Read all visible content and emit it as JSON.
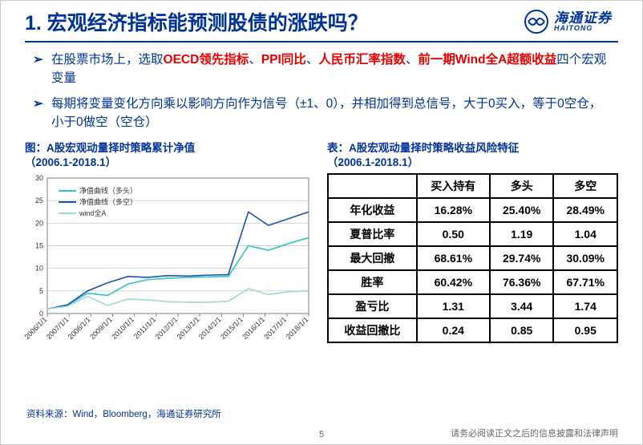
{
  "header": {
    "title": "1. 宏观经济指标能预测股债的涨跌吗？",
    "logo_cn": "海通证券",
    "logo_en": "HAITONG"
  },
  "bullets": [
    {
      "prefix": "在股票市场上，选取",
      "hl1": "OECD领先指标",
      "m1": "、",
      "hl2": "PPI同比",
      "m2": "、",
      "hl3": "人民币汇率指数",
      "m3": "、",
      "hl4": "前一期Wind全A超额收益",
      "suffix": "四个宏观变量"
    },
    {
      "text": "每期将变量变化方向乘以影响方向作为信号（±1、0），并相加得到总信号，大于0买入，等于0空仓，小于0做空（空仓）"
    }
  ],
  "chart": {
    "caption_l1": "图：A股宏观动量择时策略累计净值",
    "caption_l2": "（2006.1-2018.1）",
    "x_labels": [
      "2006/1/1",
      "2007/1/1",
      "2008/1/1",
      "2009/1/1",
      "2010/1/1",
      "2011/1/1",
      "2012/1/1",
      "2013/1/1",
      "2014/1/1",
      "2015/1/1",
      "2016/1/1",
      "2017/1/1",
      "2018/1/1"
    ],
    "y_min": 0,
    "y_max": 30,
    "y_step": 5,
    "series": [
      {
        "label": "净值曲线（多头）",
        "color": "#2ec4c6",
        "values": [
          1,
          1.8,
          4.5,
          4.0,
          6.5,
          7.5,
          7.8,
          8.0,
          8.1,
          8.2,
          15.0,
          14.0,
          15.5,
          16.8
        ]
      },
      {
        "label": "净值曲线（多空）",
        "color": "#1f4fb2",
        "values": [
          1,
          1.9,
          5.0,
          6.8,
          8.2,
          8.0,
          8.4,
          8.3,
          8.5,
          8.6,
          22.5,
          19.5,
          21.0,
          22.5
        ]
      },
      {
        "label": "wind全A",
        "color": "#9fd8d8",
        "values": [
          1,
          1.6,
          3.8,
          1.8,
          3.2,
          3.0,
          2.6,
          2.5,
          2.5,
          2.7,
          5.5,
          4.2,
          4.8,
          5.0
        ]
      }
    ],
    "margin": {
      "l": 28,
      "r": 6,
      "t": 6,
      "b": 55
    },
    "grid_color": "#bfbfbf",
    "axis_color": "#808080",
    "tick_font": 9,
    "label_font": 9,
    "line_width": 1.6,
    "background": "#ffffff"
  },
  "table": {
    "caption_l1": "表：A股宏观动量择时策略收益风险特征",
    "caption_l2": "（2006.1-2018.1）",
    "columns": [
      "",
      "买入持有",
      "多头",
      "多空"
    ],
    "rows": [
      [
        "年化收益",
        "16.28%",
        "25.40%",
        "28.49%"
      ],
      [
        "夏普比率",
        "0.50",
        "1.19",
        "1.04"
      ],
      [
        "最大回撤",
        "68.61%",
        "29.74%",
        "30.09%"
      ],
      [
        "胜率",
        "60.42%",
        "76.36%",
        "67.71%"
      ],
      [
        "盈亏比",
        "1.31",
        "3.44",
        "1.74"
      ],
      [
        "收益回撤比",
        "0.24",
        "0.85",
        "0.95"
      ]
    ]
  },
  "source": "资料来源：Wind，Bloomberg，海通证券研究所",
  "footer_page": "5",
  "footer_right": "请务必阅读正文之后的信息披露和法律声明"
}
